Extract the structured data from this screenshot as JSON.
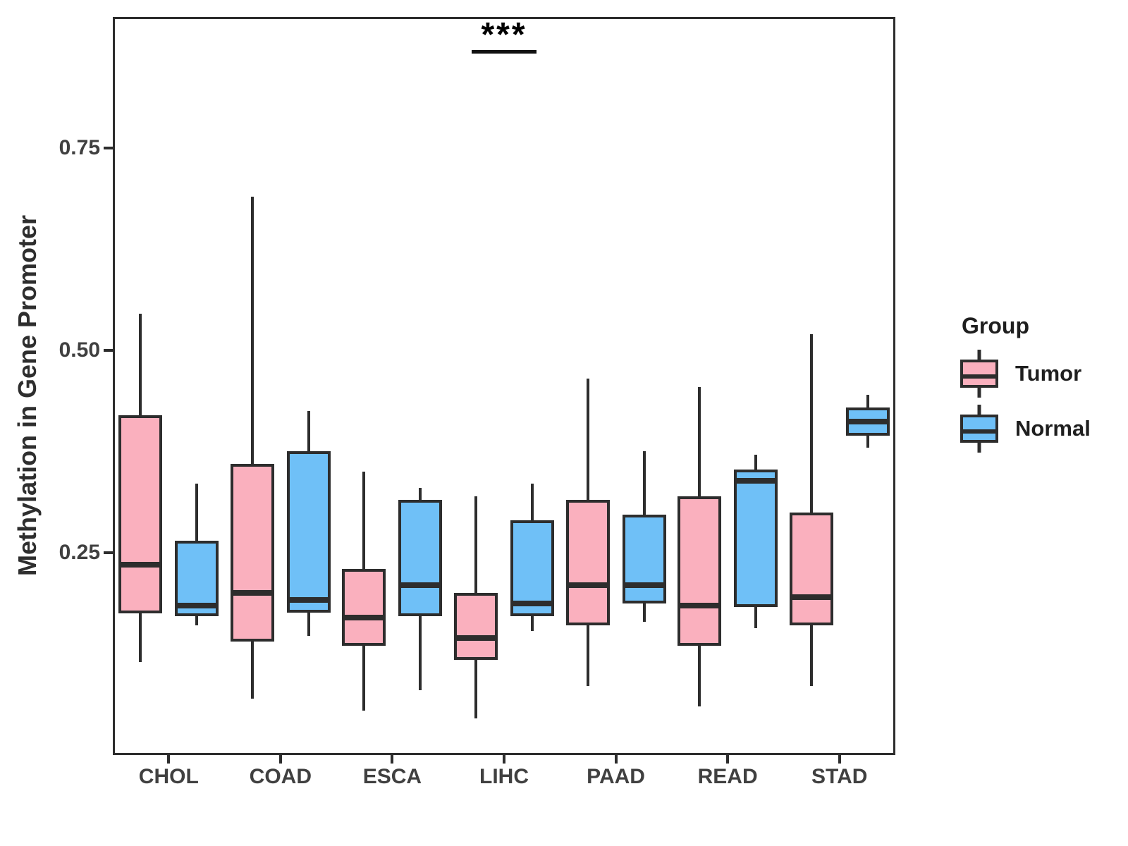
{
  "figure": {
    "background": "#FFFFFF"
  },
  "colors": {
    "tumor_fill": "#FAB0BE",
    "normal_fill": "#6FC0F7",
    "line": "#2D2D2D",
    "tick_text": "#404040",
    "annotation": "#000000"
  },
  "legend": {
    "title": "Group",
    "items": [
      {
        "label": "Tumor",
        "color": "#FAB0BE"
      },
      {
        "label": "Normal",
        "color": "#6FC0F7"
      }
    ]
  },
  "chart_data": {
    "type": "boxplot",
    "title": "",
    "xlabel": "",
    "ylabel": "Methylation in Gene Promoter",
    "grid": "off",
    "legend_position": "right",
    "categories": [
      "CHOL",
      "COAD",
      "ESCA",
      "LIHC",
      "PAAD",
      "READ",
      "STAD"
    ],
    "y_tick_labels": [
      "0.25",
      "0.50",
      "0.75"
    ],
    "y_tick_values": [
      0.25,
      0.5,
      0.75
    ],
    "ylim": [
      0,
      0.912
    ],
    "annotation": {
      "text": "***",
      "category": "LIHC"
    },
    "series": [
      {
        "name": "Tumor",
        "color": "#FAB0BE",
        "boxes": [
          {
            "category": "CHOL",
            "min": 0.115,
            "q1": 0.175,
            "median": 0.235,
            "q3": 0.42,
            "max": 0.545
          },
          {
            "category": "COAD",
            "min": 0.07,
            "q1": 0.14,
            "median": 0.2,
            "q3": 0.36,
            "max": 0.69
          },
          {
            "category": "ESCA",
            "min": 0.055,
            "q1": 0.135,
            "median": 0.17,
            "q3": 0.23,
            "max": 0.35
          },
          {
            "category": "LIHC",
            "min": 0.045,
            "q1": 0.118,
            "median": 0.145,
            "q3": 0.2,
            "max": 0.32
          },
          {
            "category": "PAAD",
            "min": 0.085,
            "q1": 0.16,
            "median": 0.21,
            "q3": 0.315,
            "max": 0.465
          },
          {
            "category": "READ",
            "min": 0.06,
            "q1": 0.135,
            "median": 0.185,
            "q3": 0.32,
            "max": 0.455
          },
          {
            "category": "STAD",
            "min": 0.085,
            "q1": 0.16,
            "median": 0.195,
            "q3": 0.3,
            "max": 0.52
          }
        ]
      },
      {
        "name": "Normal",
        "color": "#6FC0F7",
        "boxes": [
          {
            "category": "CHOL",
            "min": 0.16,
            "q1": 0.172,
            "median": 0.185,
            "q3": 0.265,
            "max": 0.335
          },
          {
            "category": "COAD",
            "min": 0.147,
            "q1": 0.176,
            "median": 0.192,
            "q3": 0.375,
            "max": 0.425
          },
          {
            "category": "ESCA",
            "min": 0.08,
            "q1": 0.172,
            "median": 0.21,
            "q3": 0.315,
            "max": 0.33
          },
          {
            "category": "LIHC",
            "min": 0.153,
            "q1": 0.172,
            "median": 0.187,
            "q3": 0.29,
            "max": 0.335
          },
          {
            "category": "PAAD",
            "min": 0.165,
            "q1": 0.187,
            "median": 0.21,
            "q3": 0.297,
            "max": 0.375
          },
          {
            "category": "READ",
            "min": 0.157,
            "q1": 0.183,
            "median": 0.339,
            "q3": 0.353,
            "max": 0.371
          },
          {
            "category": "STAD",
            "min": 0.38,
            "q1": 0.395,
            "median": 0.412,
            "q3": 0.429,
            "max": 0.445
          }
        ]
      }
    ]
  }
}
